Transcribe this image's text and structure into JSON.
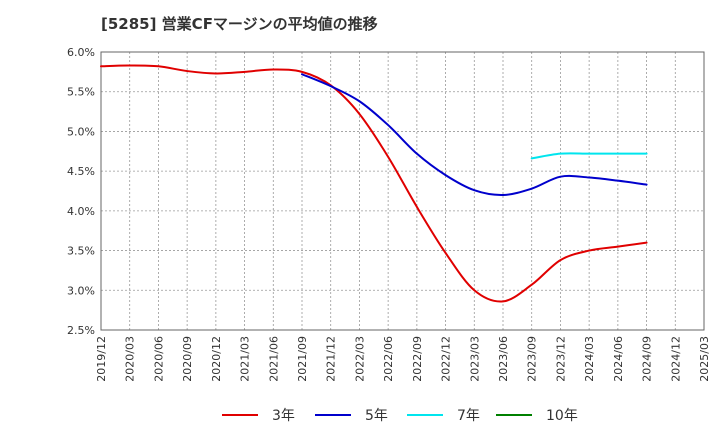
{
  "chart_data": {
    "type": "line",
    "title": "[5285]  営業CFマージンの平均値の推移",
    "xlabel": "",
    "ylabel": "",
    "ylim": [
      2.5,
      6.0
    ],
    "y_ticks": [
      "2.5%",
      "3.0%",
      "3.5%",
      "4.0%",
      "4.5%",
      "5.0%",
      "5.5%",
      "6.0%"
    ],
    "x_ticks": [
      "2019/12",
      "2020/03",
      "2020/06",
      "2020/09",
      "2020/12",
      "2021/03",
      "2021/06",
      "2021/09",
      "2021/12",
      "2022/03",
      "2022/06",
      "2022/09",
      "2022/12",
      "2023/03",
      "2023/06",
      "2023/09",
      "2023/12",
      "2024/03",
      "2024/06",
      "2024/09",
      "2024/12",
      "2025/03"
    ],
    "grid": true,
    "legend_position": "bottom",
    "series": [
      {
        "name": "3年",
        "color": "#e00000",
        "points": [
          [
            "2019/12",
            5.82
          ],
          [
            "2020/03",
            5.83
          ],
          [
            "2020/06",
            5.82
          ],
          [
            "2020/09",
            5.76
          ],
          [
            "2020/12",
            5.73
          ],
          [
            "2021/03",
            5.75
          ],
          [
            "2021/06",
            5.78
          ],
          [
            "2021/09",
            5.75
          ],
          [
            "2021/12",
            5.58
          ],
          [
            "2022/03",
            5.22
          ],
          [
            "2022/06",
            4.68
          ],
          [
            "2022/09",
            4.05
          ],
          [
            "2022/12",
            3.47
          ],
          [
            "2023/03",
            3.0
          ],
          [
            "2023/06",
            2.86
          ],
          [
            "2023/09",
            3.07
          ],
          [
            "2023/12",
            3.38
          ],
          [
            "2024/03",
            3.5
          ],
          [
            "2024/06",
            3.55
          ],
          [
            "2024/09",
            3.6
          ]
        ]
      },
      {
        "name": "5年",
        "color": "#0000cc",
        "points": [
          [
            "2021/09",
            5.72
          ],
          [
            "2021/12",
            5.57
          ],
          [
            "2022/03",
            5.38
          ],
          [
            "2022/06",
            5.08
          ],
          [
            "2022/09",
            4.72
          ],
          [
            "2022/12",
            4.45
          ],
          [
            "2023/03",
            4.26
          ],
          [
            "2023/06",
            4.2
          ],
          [
            "2023/09",
            4.28
          ],
          [
            "2023/12",
            4.43
          ],
          [
            "2024/03",
            4.42
          ],
          [
            "2024/06",
            4.38
          ],
          [
            "2024/09",
            4.33
          ]
        ]
      },
      {
        "name": "7年",
        "color": "#00e5ee",
        "points": [
          [
            "2023/09",
            4.66
          ],
          [
            "2023/12",
            4.72
          ],
          [
            "2024/03",
            4.72
          ],
          [
            "2024/06",
            4.72
          ],
          [
            "2024/09",
            4.72
          ]
        ]
      },
      {
        "name": "10年",
        "color": "#008000",
        "points": []
      }
    ]
  }
}
